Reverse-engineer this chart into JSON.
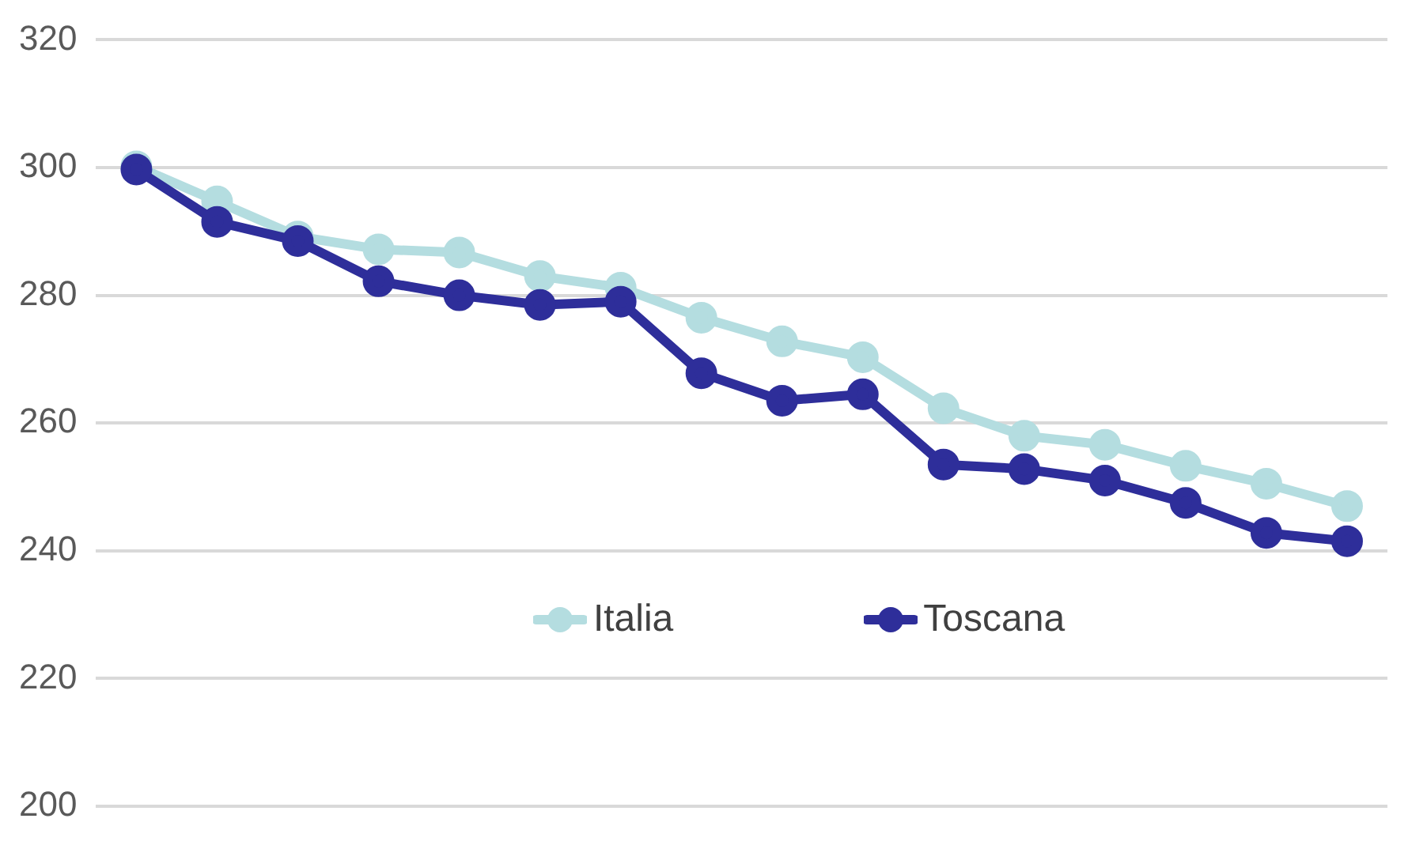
{
  "chart_data": {
    "type": "line",
    "categories": [
      null,
      null,
      null,
      null,
      null,
      null,
      null,
      null,
      null,
      null,
      null,
      null,
      null,
      null,
      null,
      null
    ],
    "series": [
      {
        "name": "Italia",
        "color": "#b4dde0",
        "values": [
          300.2,
          294.7,
          289.2,
          287.2,
          286.7,
          283,
          281.2,
          276.5,
          272.8,
          270.3,
          262.3,
          258,
          256.6,
          253.3,
          250.5,
          247
        ]
      },
      {
        "name": "Toscana",
        "color": "#2e2e9a",
        "values": [
          299.7,
          291.5,
          288.5,
          282.2,
          280,
          278.5,
          279,
          267.8,
          263.5,
          264.5,
          253.5,
          252.8,
          251,
          247.5,
          242.8,
          241.5
        ]
      }
    ],
    "ylim": [
      200,
      320
    ],
    "yticks": [
      200,
      220,
      240,
      260,
      280,
      300,
      320
    ],
    "grid": "y",
    "legend": "bottom",
    "marker": "circle",
    "line_style": "solid",
    "tick_labels": "y"
  }
}
